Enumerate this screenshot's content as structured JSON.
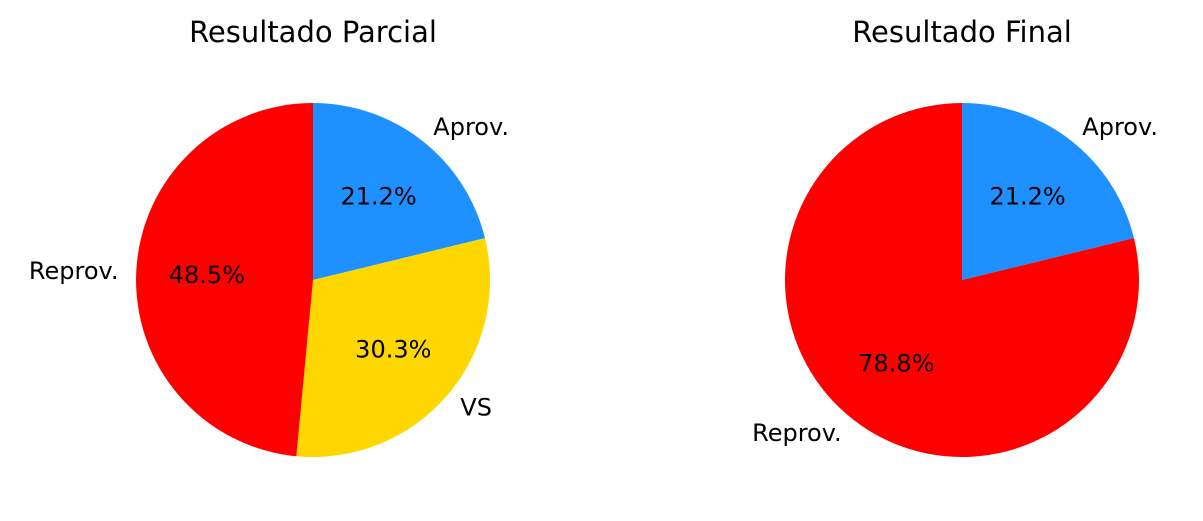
{
  "chart_data": [
    {
      "type": "pie",
      "title": "Resultado Parcial",
      "start_angle_deg": 90,
      "direction": "clockwise",
      "slices": [
        {
          "label": "Aprov.",
          "value": 21.2,
          "pct_text": "21.2%",
          "color": "#1E90FF"
        },
        {
          "label": "VS",
          "value": 30.3,
          "pct_text": "30.3%",
          "color": "#FFD700"
        },
        {
          "label": "Reprov.",
          "value": 48.5,
          "pct_text": "48.5%",
          "color": "#FF0000"
        }
      ]
    },
    {
      "type": "pie",
      "title": "Resultado Final",
      "start_angle_deg": 90,
      "direction": "clockwise",
      "slices": [
        {
          "label": "Aprov.",
          "value": 21.2,
          "pct_text": "21.2%",
          "color": "#1E90FF"
        },
        {
          "label": "Reprov.",
          "value": 78.8,
          "pct_text": "78.8%",
          "color": "#FF0000"
        }
      ]
    }
  ]
}
